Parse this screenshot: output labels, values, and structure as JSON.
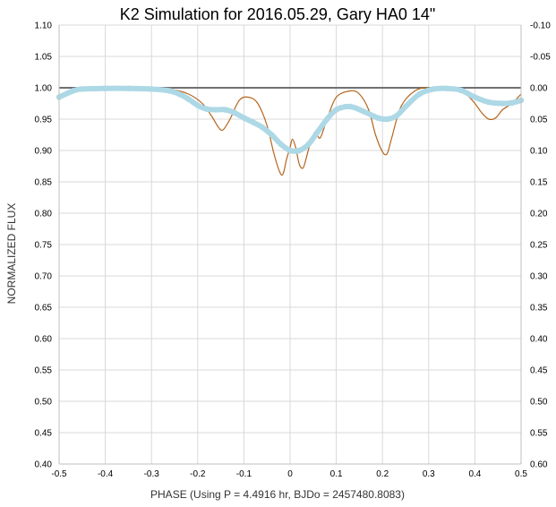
{
  "chart_data": {
    "type": "line",
    "title": "K2 Simulation for 2016.05.29, Gary HA0 14\"",
    "xlabel": "PHASE (Using P = 4.4916 hr, BJDo = 2457480.8083)",
    "ylabel": "NORMALIZED FLUX",
    "xlim": [
      -0.5,
      0.5
    ],
    "ylim": [
      0.4,
      1.1
    ],
    "y2lim": [
      -0.1,
      0.6
    ],
    "x_ticks": [
      "-0.5",
      "-0.4",
      "-0.3",
      "-0.2",
      "-0.1",
      "0",
      "0.1",
      "0.2",
      "0.3",
      "0.4",
      "0.5"
    ],
    "y_ticks": [
      "1.10",
      "1.05",
      "1.00",
      "0.95",
      "0.90",
      "0.85",
      "0.80",
      "0.75",
      "0.70",
      "0.65",
      "0.60",
      "0.55",
      "0.50",
      "0.45",
      "0.40"
    ],
    "y2_ticks": [
      "-0.10",
      "-0.05",
      "0.00",
      "0.05",
      "0.10",
      "0.15",
      "0.20",
      "0.25",
      "0.30",
      "0.35",
      "0.40",
      "0.45",
      "0.50",
      "0.55",
      "0.60"
    ],
    "grid": true,
    "reference_line": {
      "y": 1.0,
      "color": "#707070"
    },
    "series": [
      {
        "color": "#b5651d",
        "style": "thin-line",
        "x": [
          -0.5,
          -0.45,
          -0.4,
          -0.3,
          -0.26,
          -0.22,
          -0.19,
          -0.17,
          -0.155,
          -0.145,
          -0.13,
          -0.11,
          -0.09,
          -0.07,
          -0.05,
          -0.035,
          -0.022,
          -0.015,
          -0.008,
          0.0,
          0.005,
          0.012,
          0.02,
          0.028,
          0.035,
          0.045,
          0.055,
          0.065,
          0.08,
          0.1,
          0.13,
          0.15,
          0.17,
          0.185,
          0.2,
          0.21,
          0.22,
          0.24,
          0.27,
          0.3,
          0.35,
          0.38,
          0.4,
          0.415,
          0.43,
          0.445,
          0.46,
          0.48,
          0.5
        ],
        "y": [
          0.985,
          0.998,
          1.0,
          1.0,
          0.998,
          0.99,
          0.975,
          0.955,
          0.937,
          0.933,
          0.95,
          0.98,
          0.985,
          0.975,
          0.94,
          0.895,
          0.865,
          0.863,
          0.885,
          0.905,
          0.918,
          0.905,
          0.878,
          0.872,
          0.888,
          0.915,
          0.93,
          0.92,
          0.95,
          0.985,
          0.995,
          0.99,
          0.965,
          0.925,
          0.898,
          0.895,
          0.92,
          0.97,
          0.995,
          1.0,
          0.998,
          0.99,
          0.975,
          0.96,
          0.95,
          0.952,
          0.965,
          0.975,
          0.99
        ]
      },
      {
        "color": "#add8e6",
        "style": "thick-dots",
        "x": [
          -0.5,
          -0.47,
          -0.45,
          -0.4,
          -0.35,
          -0.3,
          -0.26,
          -0.24,
          -0.22,
          -0.2,
          -0.18,
          -0.16,
          -0.14,
          -0.12,
          -0.1,
          -0.08,
          -0.06,
          -0.04,
          -0.02,
          0.0,
          0.02,
          0.04,
          0.06,
          0.08,
          0.1,
          0.13,
          0.16,
          0.19,
          0.21,
          0.23,
          0.25,
          0.28,
          0.31,
          0.34,
          0.37,
          0.4,
          0.43,
          0.46,
          0.48,
          0.5
        ],
        "y": [
          0.985,
          0.995,
          0.998,
          0.999,
          0.999,
          0.998,
          0.995,
          0.99,
          0.982,
          0.972,
          0.966,
          0.965,
          0.965,
          0.96,
          0.952,
          0.945,
          0.937,
          0.925,
          0.91,
          0.9,
          0.9,
          0.91,
          0.93,
          0.95,
          0.965,
          0.97,
          0.962,
          0.952,
          0.95,
          0.955,
          0.97,
          0.99,
          0.998,
          0.999,
          0.996,
          0.985,
          0.977,
          0.975,
          0.976,
          0.98
        ]
      }
    ]
  }
}
